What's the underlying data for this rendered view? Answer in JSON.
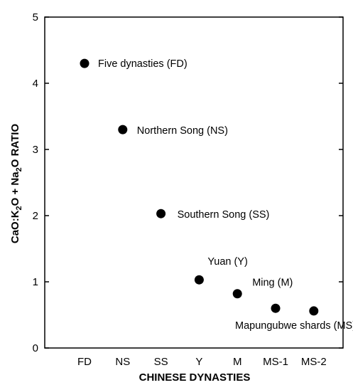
{
  "chart_data": {
    "type": "scatter",
    "xlabel": "CHINESE DYNASTIES",
    "ylabel": "CaO:K2O + Na2O RATIO",
    "ylabel_parts": {
      "a": "CaO:K",
      "sub1": "2",
      "b": "O + Na",
      "sub2": "2",
      "c": "O RATIO"
    },
    "categories": [
      "FD",
      "NS",
      "SS",
      "Y",
      "M",
      "MS-1",
      "MS-2"
    ],
    "ylim": [
      0,
      5
    ],
    "yticks": [
      "0",
      "1",
      "2",
      "3",
      "4",
      "5"
    ],
    "grid": false,
    "points": [
      {
        "x": "FD",
        "y": 4.3,
        "label": "Five dynasties (FD)"
      },
      {
        "x": "NS",
        "y": 3.3,
        "label": "Northern Song (NS)"
      },
      {
        "x": "SS",
        "y": 2.03,
        "label": "Southern Song (SS)"
      },
      {
        "x": "Y",
        "y": 1.03,
        "label": "Yuan (Y)"
      },
      {
        "x": "M",
        "y": 0.82,
        "label": "Ming (M)"
      },
      {
        "x": "MS-1",
        "y": 0.6,
        "label": ""
      },
      {
        "x": "MS-2",
        "y": 0.56,
        "label": ""
      }
    ],
    "annotation": "Mapungubwe shards (MS)",
    "marker_color": "#000000"
  }
}
